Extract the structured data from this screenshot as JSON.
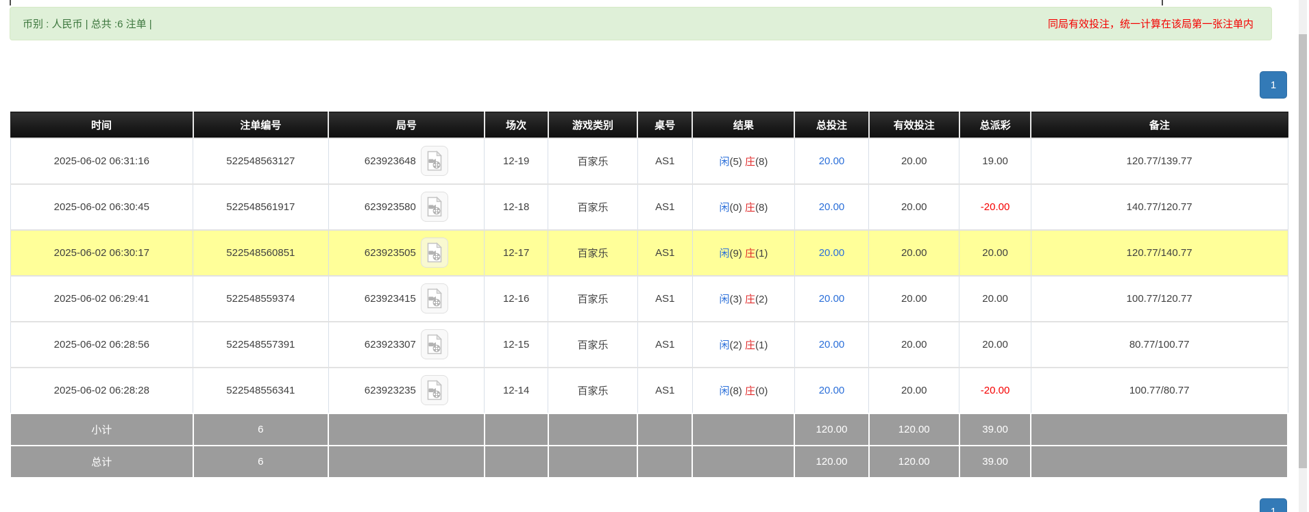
{
  "banner": {
    "left": "币别 : 人民币 | 总共 :6 注单 |",
    "right": "同局有效投注，统一计算在该局第一张注单内"
  },
  "pagination": {
    "page": "1"
  },
  "colors": {
    "banner_bg": "#dff0d8",
    "banner_text": "#3c763d",
    "notice_red": "#f40000",
    "link_blue": "#2b6fd9",
    "negative_red": "#f50000",
    "highlight_yellow": "#ffff99",
    "pagination_blue": "#337ab7",
    "footer_gray": "#9c9c9c",
    "header_black": "#1b1b1b"
  },
  "icons": {
    "video": "video-replay-icon"
  },
  "table": {
    "headers": [
      "时间",
      "注单编号",
      "局号",
      "场次",
      "游戏类别",
      "桌号",
      "结果",
      "总投注",
      "有效投注",
      "总派彩",
      "备注"
    ],
    "rows": [
      {
        "time": "2025-06-02 06:31:16",
        "bet_no": "522548563127",
        "round_no": "623923648",
        "session": "12-19",
        "game": "百家乐",
        "table_no": "AS1",
        "player_label": "闲",
        "player_val": "(5)",
        "banker_label": "庄",
        "banker_val": "(8)",
        "total_bet": "20.00",
        "valid_bet": "20.00",
        "payout": "19.00",
        "remark": "120.77/139.77",
        "highlight": false
      },
      {
        "time": "2025-06-02 06:30:45",
        "bet_no": "522548561917",
        "round_no": "623923580",
        "session": "12-18",
        "game": "百家乐",
        "table_no": "AS1",
        "player_label": "闲",
        "player_val": "(0)",
        "banker_label": "庄",
        "banker_val": "(8)",
        "total_bet": "20.00",
        "valid_bet": "20.00",
        "payout": "-20.00",
        "remark": "140.77/120.77",
        "highlight": false
      },
      {
        "time": "2025-06-02 06:30:17",
        "bet_no": "522548560851",
        "round_no": "623923505",
        "session": "12-17",
        "game": "百家乐",
        "table_no": "AS1",
        "player_label": "闲",
        "player_val": "(9)",
        "banker_label": "庄",
        "banker_val": "(1)",
        "total_bet": "20.00",
        "valid_bet": "20.00",
        "payout": "20.00",
        "remark": "120.77/140.77",
        "highlight": true
      },
      {
        "time": "2025-06-02 06:29:41",
        "bet_no": "522548559374",
        "round_no": "623923415",
        "session": "12-16",
        "game": "百家乐",
        "table_no": "AS1",
        "player_label": "闲",
        "player_val": "(3)",
        "banker_label": "庄",
        "banker_val": "(2)",
        "total_bet": "20.00",
        "valid_bet": "20.00",
        "payout": "20.00",
        "remark": "100.77/120.77",
        "highlight": false
      },
      {
        "time": "2025-06-02 06:28:56",
        "bet_no": "522548557391",
        "round_no": "623923307",
        "session": "12-15",
        "game": "百家乐",
        "table_no": "AS1",
        "player_label": "闲",
        "player_val": "(2)",
        "banker_label": "庄",
        "banker_val": "(1)",
        "total_bet": "20.00",
        "valid_bet": "20.00",
        "payout": "20.00",
        "remark": "80.77/100.77",
        "highlight": false
      },
      {
        "time": "2025-06-02 06:28:28",
        "bet_no": "522548556341",
        "round_no": "623923235",
        "session": "12-14",
        "game": "百家乐",
        "table_no": "AS1",
        "player_label": "闲",
        "player_val": "(8)",
        "banker_label": "庄",
        "banker_val": "(0)",
        "total_bet": "20.00",
        "valid_bet": "20.00",
        "payout": "-20.00",
        "remark": "100.77/80.77",
        "highlight": false
      }
    ],
    "footer": [
      {
        "label": "小计",
        "count": "6",
        "total_bet": "120.00",
        "valid_bet": "120.00",
        "payout": "39.00"
      },
      {
        "label": "总计",
        "count": "6",
        "total_bet": "120.00",
        "valid_bet": "120.00",
        "payout": "39.00"
      }
    ]
  }
}
